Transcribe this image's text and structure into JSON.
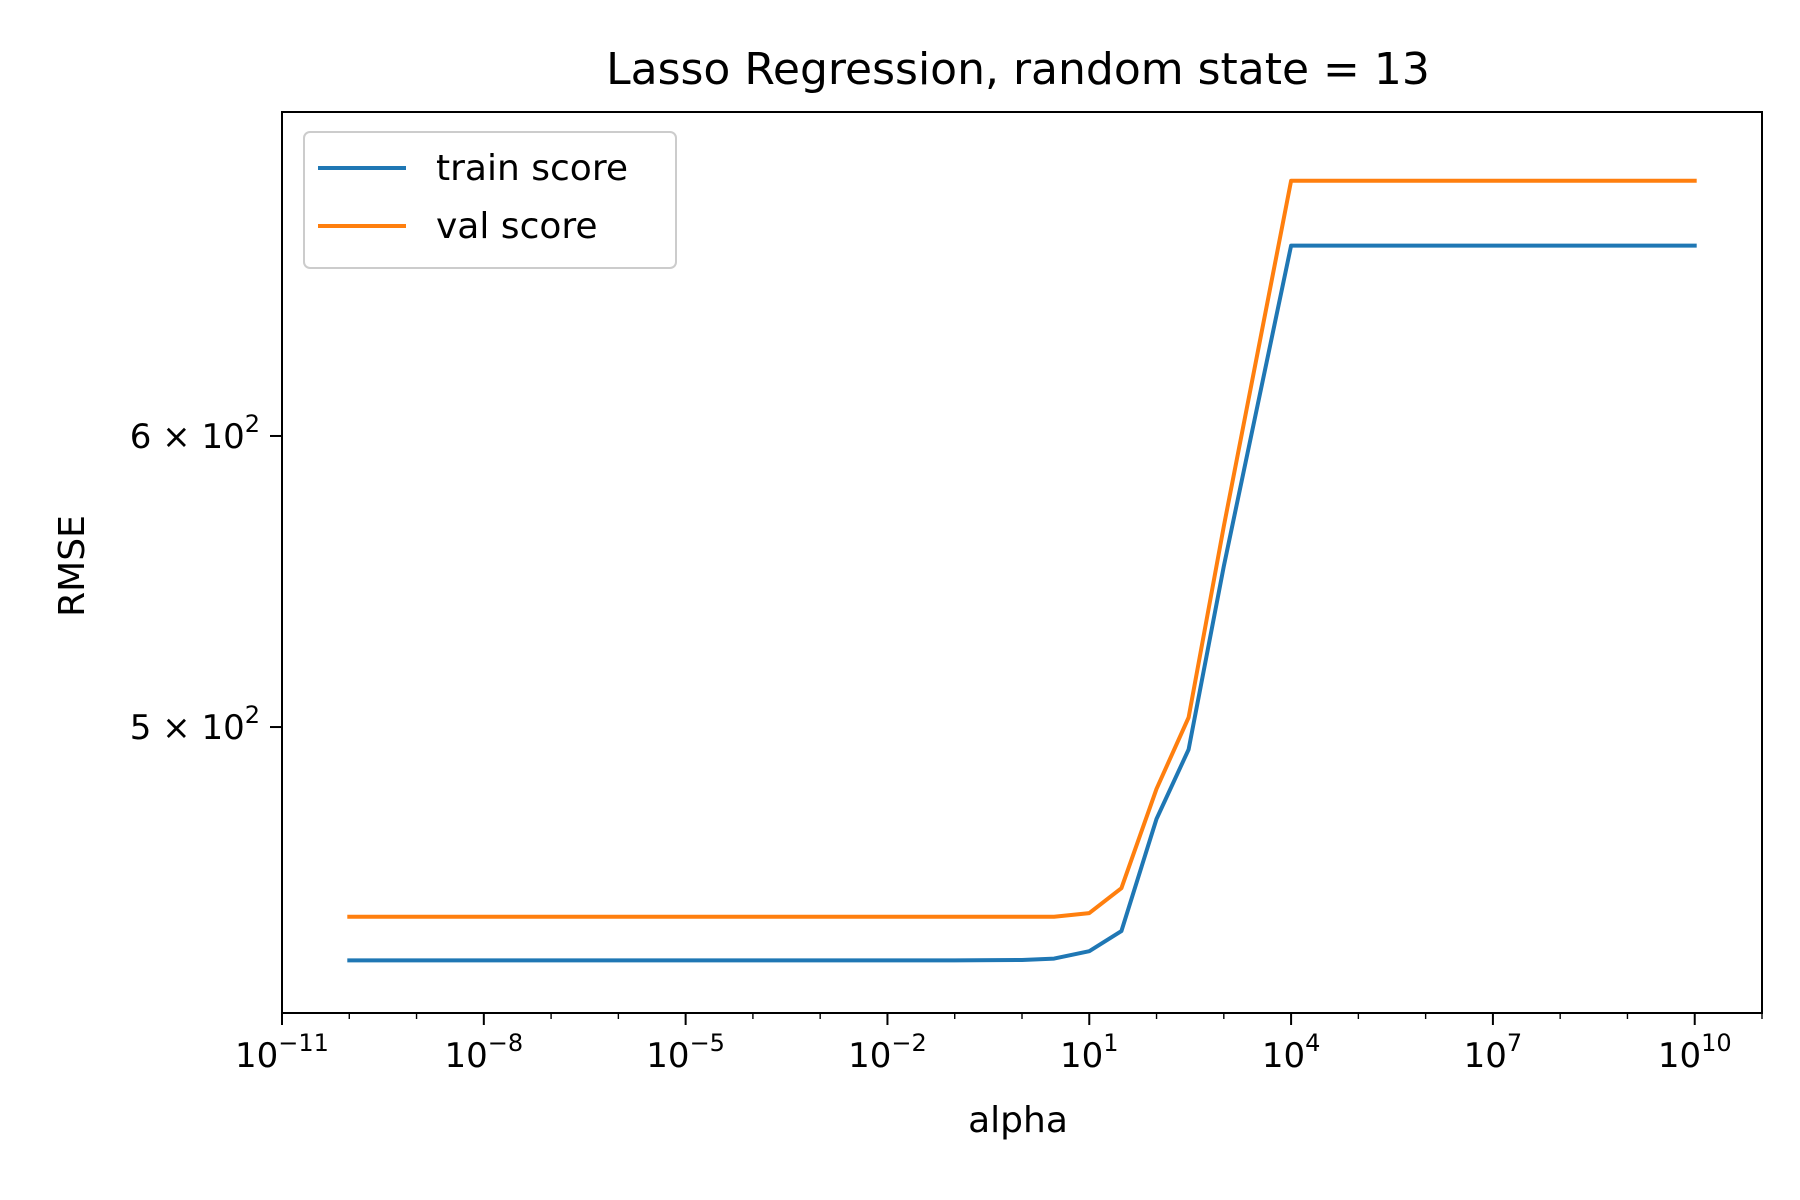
{
  "chart_data": {
    "type": "line",
    "title": "Lasso Regression, random state = 13",
    "xlabel": "alpha",
    "ylabel": "RMSE",
    "xscale": "log",
    "yscale": "log",
    "xlim": [
      1e-11,
      100000000000.0
    ],
    "ylim": [
      418,
      735
    ],
    "grid": false,
    "legend": "upper-left",
    "x_ticks": [
      {
        "value": 1e-11,
        "base": "10",
        "exp": "−11"
      },
      {
        "value": 1e-08,
        "base": "10",
        "exp": "−8"
      },
      {
        "value": 1e-05,
        "base": "10",
        "exp": "−5"
      },
      {
        "value": 0.01,
        "base": "10",
        "exp": "−2"
      },
      {
        "value": 10.0,
        "base": "10",
        "exp": "1"
      },
      {
        "value": 10000.0,
        "base": "10",
        "exp": "4"
      },
      {
        "value": 10000000.0,
        "base": "10",
        "exp": "7"
      },
      {
        "value": 10000000000.0,
        "base": "10",
        "exp": "10"
      }
    ],
    "y_ticks": [
      {
        "value": 500,
        "mant": "5 × 10",
        "exp": "2"
      },
      {
        "value": 600,
        "mant": "6 × 10",
        "exp": "2"
      }
    ],
    "x": [
      1e-10,
      1e-09,
      1e-08,
      1e-07,
      1e-06,
      1e-05,
      0.0001,
      0.001,
      0.01,
      0.1,
      1,
      3,
      10,
      30,
      100,
      300,
      1000,
      10000.0,
      100000.0,
      1000000.0,
      10000000.0,
      100000000.0,
      1000000000.0,
      10000000000.0
    ],
    "series": [
      {
        "name": "train score",
        "color": "#1f77b4",
        "values": [
          432,
          432,
          432,
          432,
          432,
          432,
          432,
          432,
          432,
          432,
          432.1,
          432.5,
          434.5,
          440,
          472,
          493,
          553,
          676,
          676,
          676,
          676,
          676,
          676,
          676
        ]
      },
      {
        "name": "val score",
        "color": "#ff7f0e",
        "values": [
          444,
          444,
          444,
          444,
          444,
          444,
          444,
          444,
          444,
          444,
          444,
          444,
          445,
          452,
          481,
          503,
          567,
          704,
          704,
          704,
          704,
          704,
          704,
          704
        ]
      }
    ]
  }
}
